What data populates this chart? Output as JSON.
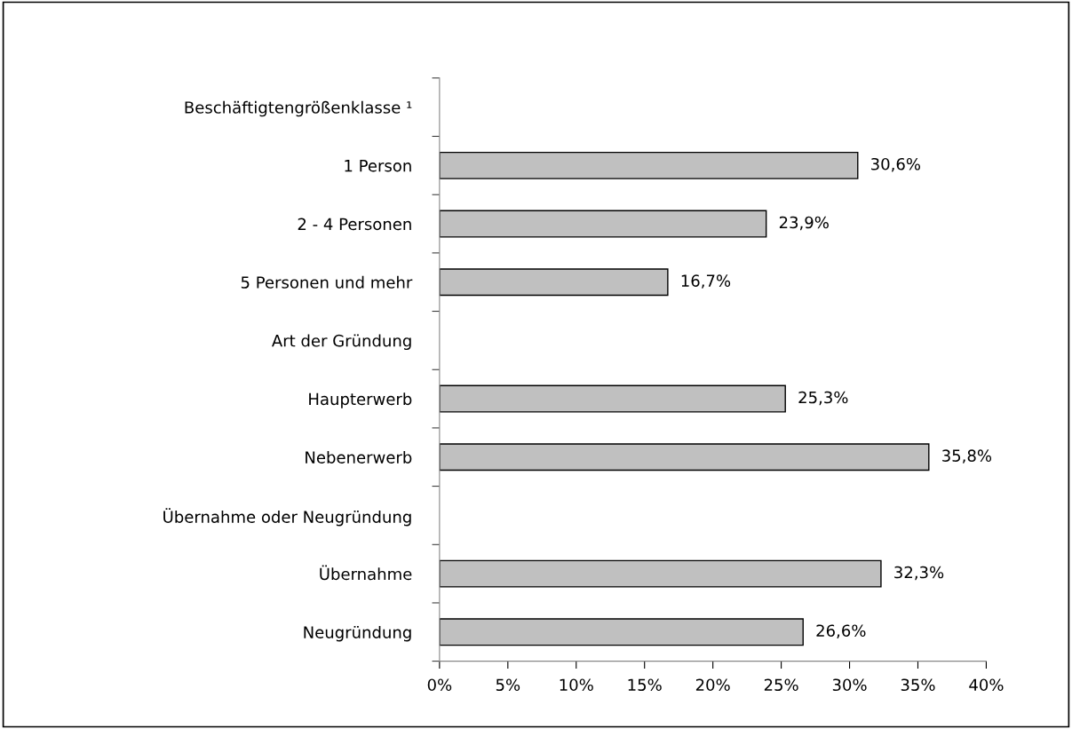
{
  "chart_data": {
    "type": "bar",
    "orientation": "horizontal",
    "categories": [
      "Beschäftigtengrößenklasse ¹",
      "1 Person",
      "2 - 4 Personen",
      "5 Personen und mehr",
      "Art der Gründung",
      "Haupterwerb",
      "Nebenerwerb",
      "Übernahme oder Neugründung",
      "Übernahme",
      "Neugründung"
    ],
    "values": [
      null,
      30.6,
      23.9,
      16.7,
      null,
      25.3,
      35.8,
      null,
      32.3,
      26.6
    ],
    "value_labels": [
      null,
      "30,6%",
      "23,9%",
      "16,7%",
      null,
      "25,3%",
      "35,8%",
      null,
      "32,3%",
      "26,6%"
    ],
    "color": "#c0c0c0",
    "xlim": [
      0,
      40
    ],
    "xticks": [
      {
        "value": 0,
        "label": "0%"
      },
      {
        "value": 5,
        "label": "5%"
      },
      {
        "value": 10,
        "label": "10%"
      },
      {
        "value": 15,
        "label": "15%"
      },
      {
        "value": 20,
        "label": "20%"
      },
      {
        "value": 25,
        "label": "25%"
      },
      {
        "value": 30,
        "label": "30%"
      },
      {
        "value": 35,
        "label": "35%"
      },
      {
        "value": 40,
        "label": "40%"
      }
    ],
    "grid": false,
    "legend": false
  }
}
